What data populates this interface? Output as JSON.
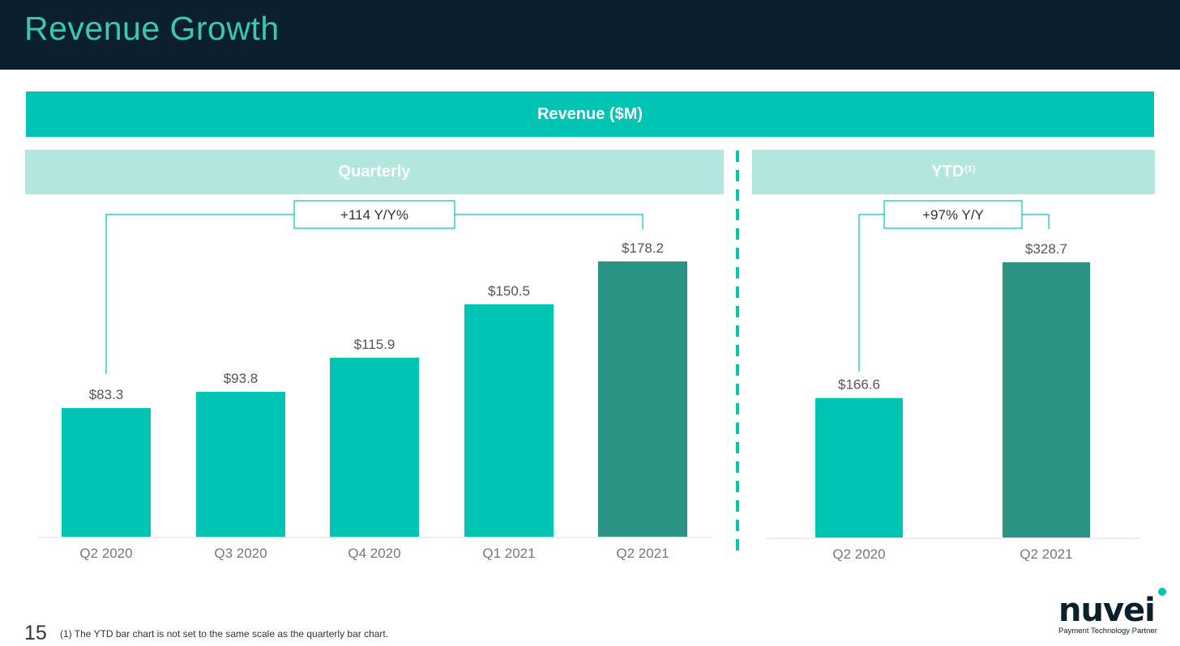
{
  "page": {
    "title": "Revenue Growth",
    "band_label": "Revenue ($M)",
    "quarterly_header": "Quarterly",
    "ytd_header": "YTD",
    "ytd_header_sup": "(1)",
    "page_number": "15",
    "footnote_marker": "(1)",
    "footnote_text": "The YTD bar chart is not set to the same scale as the quarterly bar chart.",
    "logo_text": "nuvei",
    "logo_tagline": "Payment Technology Partner"
  },
  "colors": {
    "header_bg": "#0b1f2c",
    "title_text": "#3ac8ae",
    "band": "#00c4b3",
    "subhead": "#b2e6df",
    "bar_primary": "#00c4b3",
    "bar_highlight": "#2b9382",
    "divider": "#00c4b3"
  },
  "chart_data": [
    {
      "type": "bar",
      "title": "Quarterly",
      "categories": [
        "Q2 2020",
        "Q3 2020",
        "Q4 2020",
        "Q1 2021",
        "Q2 2021"
      ],
      "values": [
        83.3,
        93.8,
        115.9,
        150.5,
        178.2
      ],
      "data_labels": [
        "$83.3",
        "$93.8",
        "$115.9",
        "$150.5",
        "$178.2"
      ],
      "highlight_index": 4,
      "annotation": "+114 Y/Y%",
      "ylim": [
        0,
        178.2
      ],
      "grid": false
    },
    {
      "type": "bar",
      "title": "YTD",
      "categories": [
        "Q2 2020",
        "Q2 2021"
      ],
      "values": [
        166.6,
        328.7
      ],
      "data_labels": [
        "$166.6",
        "$328.7"
      ],
      "highlight_index": 1,
      "annotation": "+97% Y/Y",
      "ylim": [
        0,
        328.7
      ],
      "grid": false
    }
  ]
}
